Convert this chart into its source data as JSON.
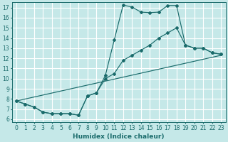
{
  "xlabel": "Humidex (Indice chaleur)",
  "xlim": [
    0,
    23
  ],
  "ylim": [
    6,
    17
  ],
  "xticks": [
    0,
    1,
    2,
    3,
    4,
    5,
    6,
    7,
    8,
    9,
    10,
    11,
    12,
    13,
    14,
    15,
    16,
    17,
    18,
    19,
    20,
    21,
    22,
    23
  ],
  "yticks": [
    6,
    7,
    8,
    9,
    10,
    11,
    12,
    13,
    14,
    15,
    16,
    17
  ],
  "bg_color": "#c5e8e8",
  "grid_color": "#ffffff",
  "line_color": "#1a6b6b",
  "line1_x": [
    0,
    1,
    2,
    3,
    4,
    5,
    6,
    7,
    8,
    9,
    10,
    11,
    12,
    13,
    14,
    15,
    16,
    17,
    18,
    19,
    20,
    21,
    22,
    23
  ],
  "line1_y": [
    7.8,
    7.5,
    7.2,
    6.7,
    6.55,
    6.55,
    6.55,
    6.4,
    8.3,
    8.6,
    10.3,
    13.8,
    17.25,
    17.05,
    16.55,
    16.5,
    16.55,
    17.2,
    17.2,
    13.3,
    13.0,
    13.0,
    12.55,
    12.4
  ],
  "line2_x": [
    0,
    1,
    2,
    3,
    4,
    5,
    6,
    7,
    8,
    9,
    10,
    11,
    12,
    13,
    14,
    15,
    16,
    17,
    18,
    19,
    20,
    21,
    22,
    23
  ],
  "line2_y": [
    7.8,
    7.5,
    7.2,
    6.7,
    6.55,
    6.55,
    6.55,
    6.4,
    8.3,
    8.6,
    10.0,
    10.5,
    11.8,
    12.3,
    12.8,
    13.3,
    14.0,
    14.5,
    15.0,
    13.3,
    13.0,
    13.0,
    12.55,
    12.4
  ],
  "line3_x": [
    0,
    23
  ],
  "line3_y": [
    7.8,
    12.3
  ]
}
